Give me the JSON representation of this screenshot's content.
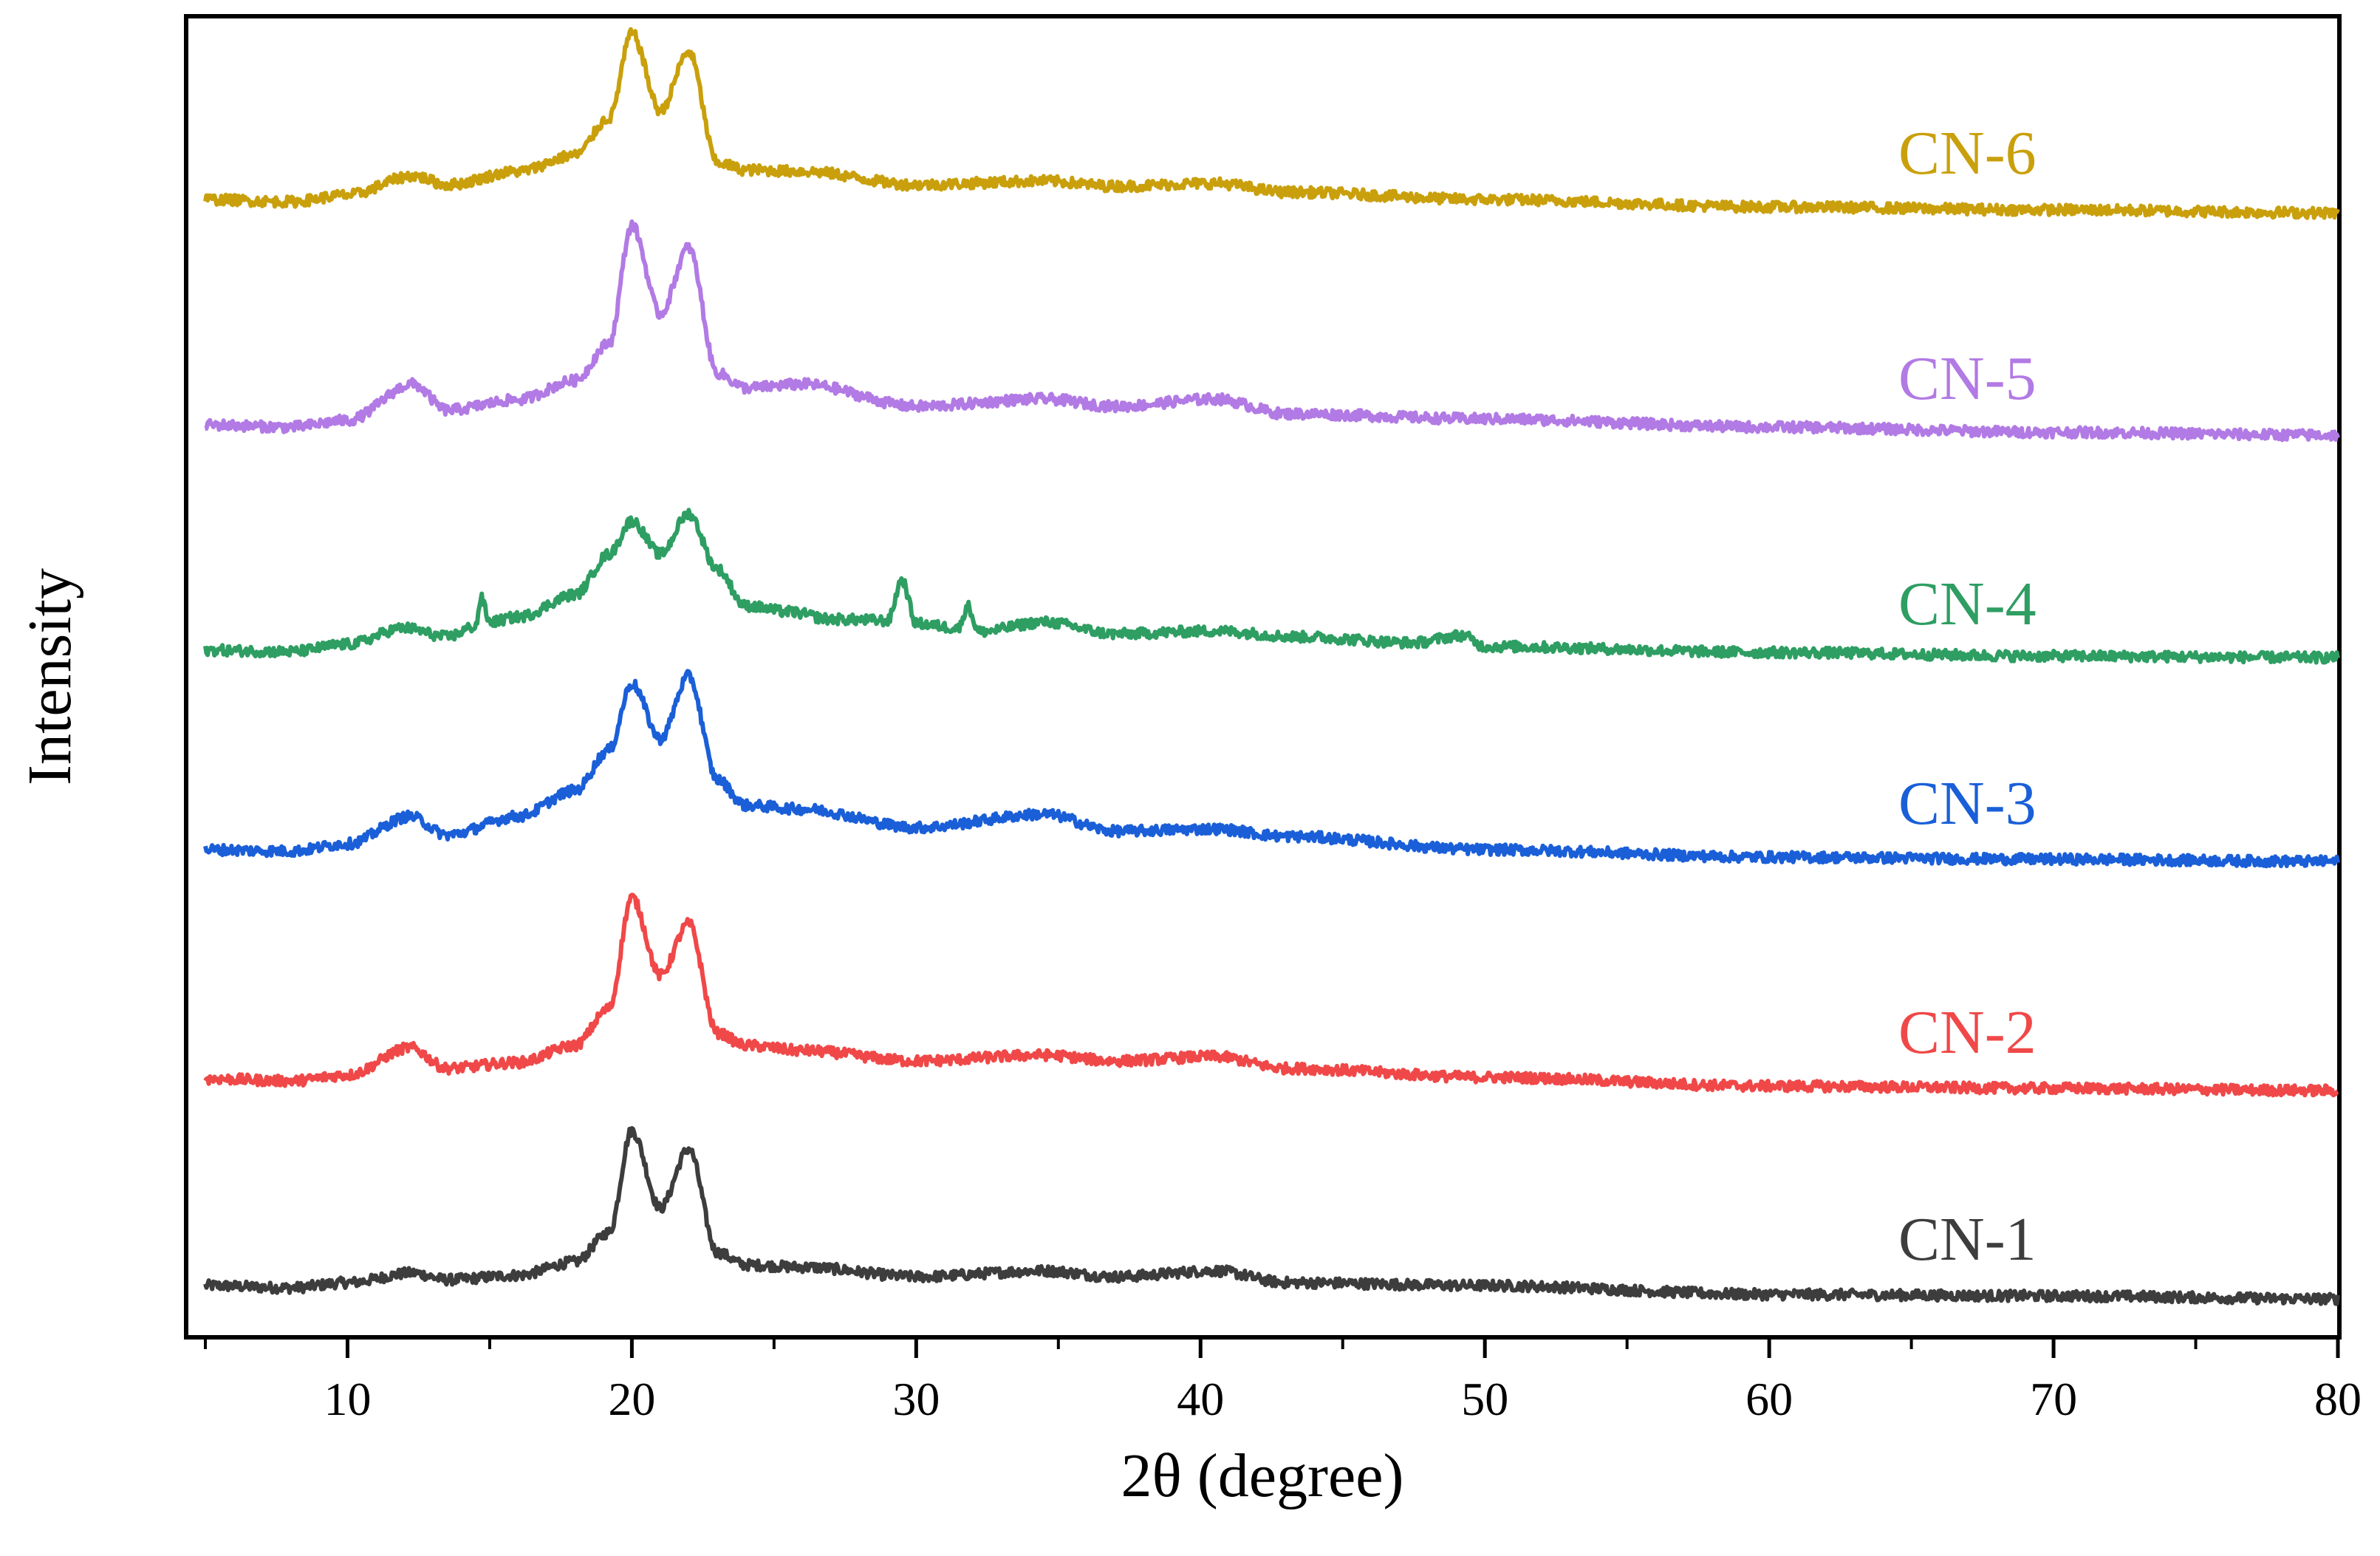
{
  "chart_data": {
    "type": "line",
    "title": "",
    "xlabel": "2θ (degree)",
    "ylabel": "Intensity",
    "xlim": [
      5,
      80
    ],
    "xticks": [
      10,
      20,
      30,
      40,
      50,
      60,
      70,
      80
    ],
    "xtick_labels": [
      "10",
      "20",
      "30",
      "40",
      "50",
      "60",
      "70",
      "80"
    ],
    "yticks": "none",
    "grid": false,
    "legend": "inline labels at right of each trace",
    "series": [
      {
        "name": "CN-1",
        "color": "#3d3d3d",
        "offset": 0,
        "x": [
          5,
          8,
          10,
          12.3,
          13.5,
          16,
          18,
          19.2,
          20,
          21,
          22,
          23,
          24,
          26,
          30,
          34.5,
          37,
          40.5,
          43,
          50,
          60,
          70,
          80
        ],
        "y": [
          0,
          -3,
          4,
          17,
          8,
          14,
          32,
          72,
          210,
          105,
          185,
          45,
          28,
          25,
          12,
          20,
          12,
          20,
          4,
          0,
          -12,
          -14,
          -18
        ]
      },
      {
        "name": "CN-2",
        "color": "#f04848",
        "offset": 280,
        "x": [
          5,
          8,
          10,
          12.2,
          13.5,
          16,
          18,
          19.2,
          20,
          21,
          22,
          23,
          24,
          26,
          30,
          34.5,
          37,
          40.5,
          43,
          50,
          60,
          70,
          80
        ],
        "y": [
          0,
          -3,
          5,
          42,
          14,
          22,
          45,
          95,
          245,
          140,
          210,
          62,
          45,
          38,
          24,
          32,
          24,
          30,
          14,
          2,
          -10,
          -13,
          -16
        ]
      },
      {
        "name": "CN-3",
        "color": "#1a5fd8",
        "offset": 590,
        "x": [
          5,
          8,
          10,
          12.2,
          13.5,
          16,
          18,
          19.2,
          20,
          21,
          22,
          23,
          24,
          26,
          30,
          34.5,
          37,
          40.5,
          43,
          50,
          60,
          70,
          80
        ],
        "y": [
          0,
          -2,
          8,
          45,
          20,
          45,
          80,
          135,
          225,
          150,
          235,
          95,
          60,
          55,
          30,
          48,
          25,
          28,
          18,
          0,
          -10,
          -13,
          -16
        ]
      },
      {
        "name": "CN-4",
        "color": "#2e9e62",
        "offset": 860,
        "x": [
          5,
          8,
          10,
          12,
          13.5,
          14.5,
          14.7,
          15,
          16,
          18,
          19.2,
          20,
          21,
          22,
          23,
          24,
          25.5,
          27,
          29,
          29.5,
          30,
          31.5,
          31.8,
          32.2,
          34.5,
          37,
          40.5,
          43.5,
          47.5,
          49.2,
          50,
          60,
          70,
          80
        ],
        "y": [
          0,
          -2,
          8,
          30,
          18,
          32,
          70,
          38,
          45,
          75,
          130,
          175,
          130,
          185,
          110,
          60,
          52,
          42,
          40,
          95,
          36,
          30,
          60,
          25,
          38,
          22,
          26,
          18,
          10,
          20,
          5,
          -3,
          -8,
          -10
        ]
      },
      {
        "name": "CN-5",
        "color": "#b27ae4",
        "offset": 1165,
        "x": [
          5,
          8,
          10,
          12.3,
          13.5,
          16,
          18,
          19.2,
          20,
          21,
          22,
          23,
          24,
          26,
          30,
          34.5,
          37,
          40.5,
          43,
          50,
          60,
          70,
          80
        ],
        "y": [
          0,
          -3,
          6,
          55,
          20,
          34,
          60,
          110,
          270,
          150,
          240,
          70,
          50,
          55,
          25,
          35,
          25,
          35,
          15,
          8,
          -3,
          -10,
          -14
        ]
      },
      {
        "name": "CN-6",
        "color": "#c9a00c",
        "offset": 1470,
        "x": [
          5,
          8,
          10,
          12.3,
          13.5,
          16,
          18,
          19.2,
          20,
          21,
          22,
          23,
          24,
          26,
          30,
          34.5,
          37,
          40.5,
          43,
          50,
          60,
          70,
          80
        ],
        "y": [
          0,
          -3,
          6,
          32,
          20,
          38,
          60,
          110,
          225,
          120,
          200,
          50,
          40,
          38,
          20,
          25,
          18,
          22,
          10,
          0,
          -10,
          -14,
          -18
        ]
      }
    ]
  }
}
